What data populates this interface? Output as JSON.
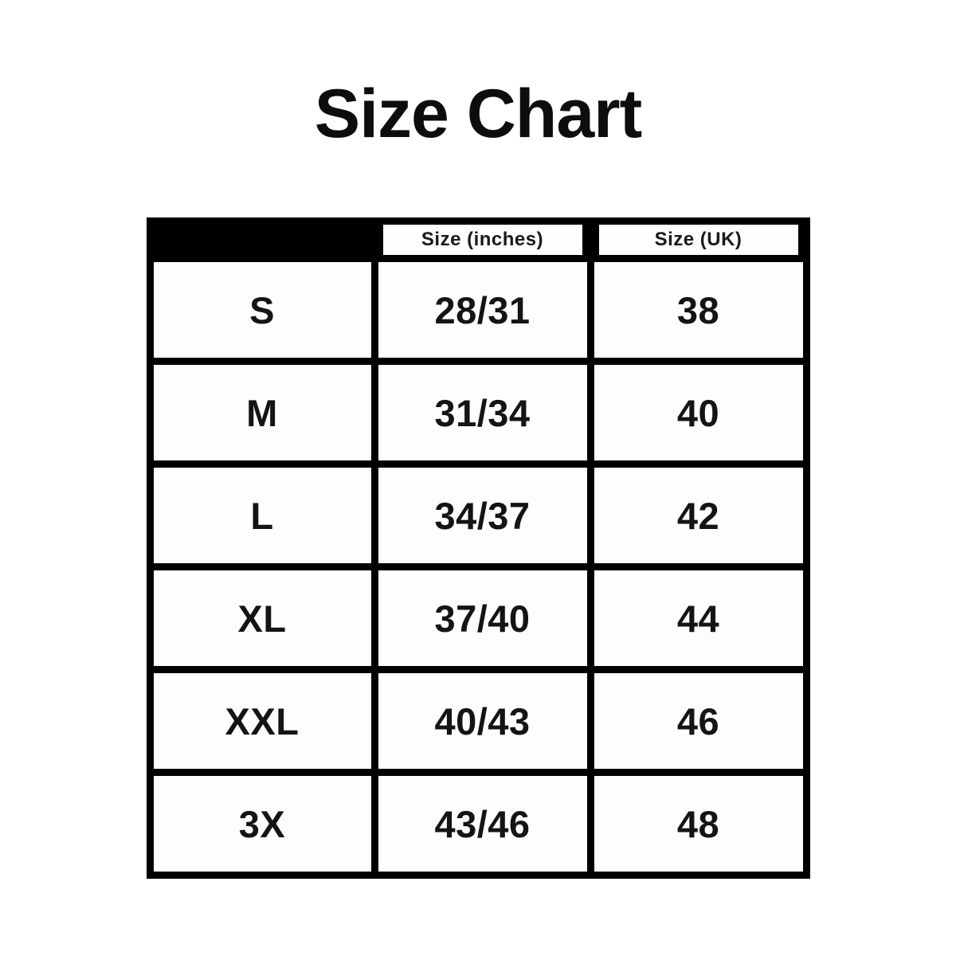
{
  "page": {
    "title": "Size Chart",
    "background_color": "#ffffff",
    "table_border_color": "#000000",
    "cell_color": "#fdfdfd",
    "text_color": "#141414"
  },
  "table": {
    "header": {
      "corner_label": "",
      "col_inches_label": "Size (inches)",
      "col_uk_label": "Size (UK)"
    },
    "rows": [
      {
        "size": "S",
        "inches": "28/31",
        "uk": "38"
      },
      {
        "size": "M",
        "inches": "31/34",
        "uk": "40"
      },
      {
        "size": "L",
        "inches": "34/37",
        "uk": "42"
      },
      {
        "size": "XL",
        "inches": "37/40",
        "uk": "44"
      },
      {
        "size": "XXL",
        "inches": "40/43",
        "uk": "46"
      },
      {
        "size": "3X",
        "inches": "43/46",
        "uk": "48"
      }
    ]
  },
  "chart_data": {
    "type": "table",
    "title": "Size Chart",
    "columns": [
      "",
      "Size (inches)",
      "Size (UK)"
    ],
    "rows": [
      [
        "S",
        "28/31",
        "38"
      ],
      [
        "M",
        "31/34",
        "40"
      ],
      [
        "L",
        "34/37",
        "42"
      ],
      [
        "XL",
        "37/40",
        "44"
      ],
      [
        "XXL",
        "40/43",
        "46"
      ],
      [
        "3X",
        "43/46",
        "48"
      ]
    ],
    "layout": {
      "header_background": "#000000",
      "grid": "thick-black-lines",
      "notes": "first header cell is solid black with no label"
    }
  }
}
